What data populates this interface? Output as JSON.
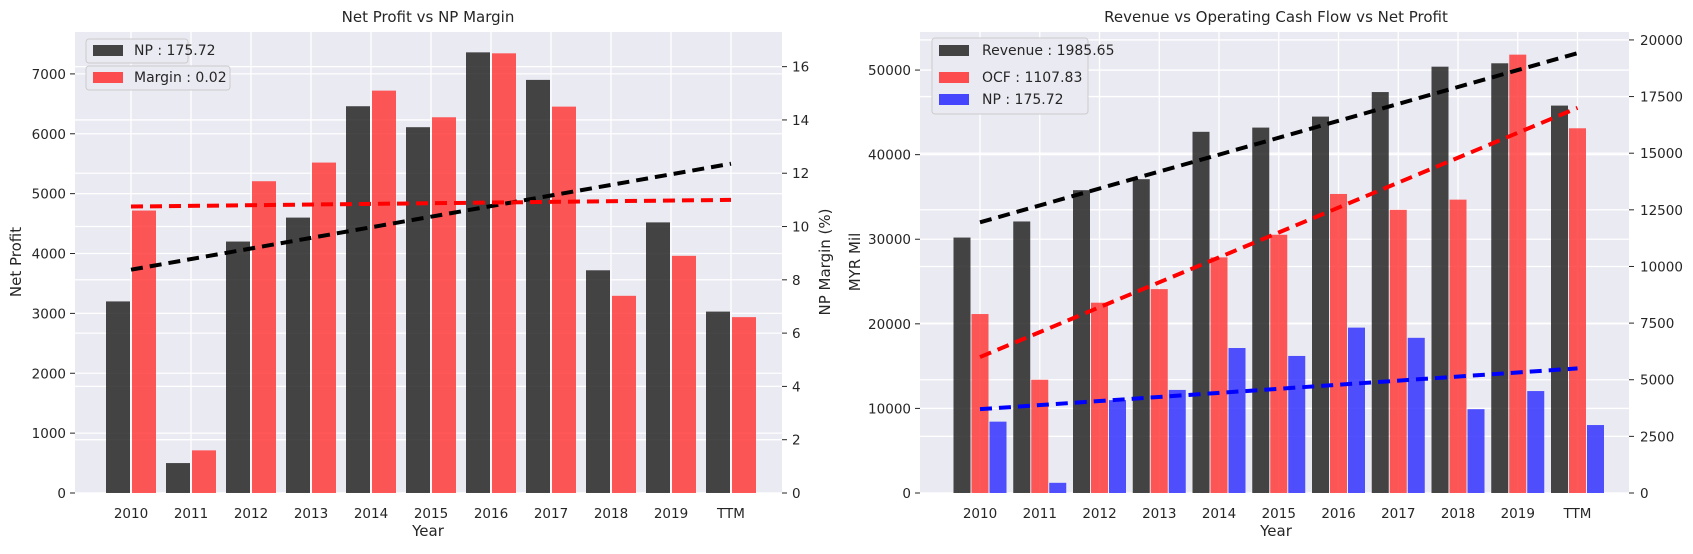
{
  "chart_data": [
    {
      "type": "bar",
      "title": "Net Profit vs NP Margin",
      "xlabel": "Year",
      "ylabel": "Net Profit",
      "y2label": "NP Margin (%)",
      "categories": [
        "2010",
        "2011",
        "2012",
        "2013",
        "2014",
        "2015",
        "2016",
        "2017",
        "2018",
        "2019",
        "TTM"
      ],
      "ylim": [
        0,
        7700
      ],
      "y2lim": [
        0,
        17.3
      ],
      "yticks": [
        0,
        1000,
        2000,
        3000,
        4000,
        5000,
        6000,
        7000
      ],
      "y2ticks": [
        0,
        2,
        4,
        6,
        8,
        10,
        12,
        14,
        16
      ],
      "grid": true,
      "series": [
        {
          "name": "NP : 175.72",
          "axis": "left",
          "color": "#262626",
          "values": [
            3200,
            500,
            4200,
            4600,
            6460,
            6110,
            7360,
            6900,
            3720,
            4520,
            3030
          ]
        },
        {
          "name": "Margin : 0.02",
          "axis": "right",
          "color": "#ff3b3b",
          "values": [
            10.6,
            1.6,
            11.7,
            12.4,
            15.1,
            14.1,
            16.5,
            14.5,
            7.4,
            8.9,
            6.6
          ]
        }
      ],
      "trendlines": [
        {
          "axis": "left",
          "color": "#000000",
          "from": 3730,
          "to": 5500
        },
        {
          "axis": "right",
          "color": "#ff0000",
          "from": 10.75,
          "to": 11.0
        }
      ],
      "legend_position": "top-left"
    },
    {
      "type": "bar",
      "title": "Revenue vs Operating Cash Flow vs Net Profit",
      "xlabel": "Year",
      "ylabel": "MYR Mil",
      "categories": [
        "2010",
        "2011",
        "2012",
        "2013",
        "2014",
        "2015",
        "2016",
        "2017",
        "2018",
        "2019",
        "TTM"
      ],
      "ylim": [
        0,
        54500
      ],
      "y2lim": [
        0,
        20350
      ],
      "yticks": [
        0,
        10000,
        20000,
        30000,
        40000,
        50000
      ],
      "y2ticks": [
        0,
        2500,
        5000,
        7500,
        10000,
        12500,
        15000,
        17500,
        20000
      ],
      "grid": true,
      "series": [
        {
          "name": "Revenue : 1985.65",
          "axis": "left",
          "color": "#262626",
          "values": [
            30200,
            32100,
            35800,
            37100,
            42700,
            43200,
            44500,
            47400,
            50400,
            50800,
            45800
          ]
        },
        {
          "name": "OCF : 1107.83",
          "axis": "right",
          "color": "#ff3b3b",
          "values": [
            7900,
            5000,
            8400,
            9000,
            10400,
            11400,
            13200,
            12500,
            12950,
            19350,
            16100
          ]
        },
        {
          "name": "NP : 175.72",
          "axis": "right",
          "color": "#3333ff",
          "values": [
            3150,
            450,
            4100,
            4550,
            6400,
            6050,
            7300,
            6850,
            3700,
            4500,
            3000
          ]
        }
      ],
      "trendlines": [
        {
          "axis": "left",
          "color": "#000000",
          "from": 32000,
          "to": 52000
        },
        {
          "axis": "right",
          "color": "#ff0000",
          "from": 6000,
          "to": 17000
        },
        {
          "axis": "right",
          "color": "#0000ff",
          "from": 3700,
          "to": 5500
        }
      ],
      "legend_position": "top-left"
    }
  ]
}
